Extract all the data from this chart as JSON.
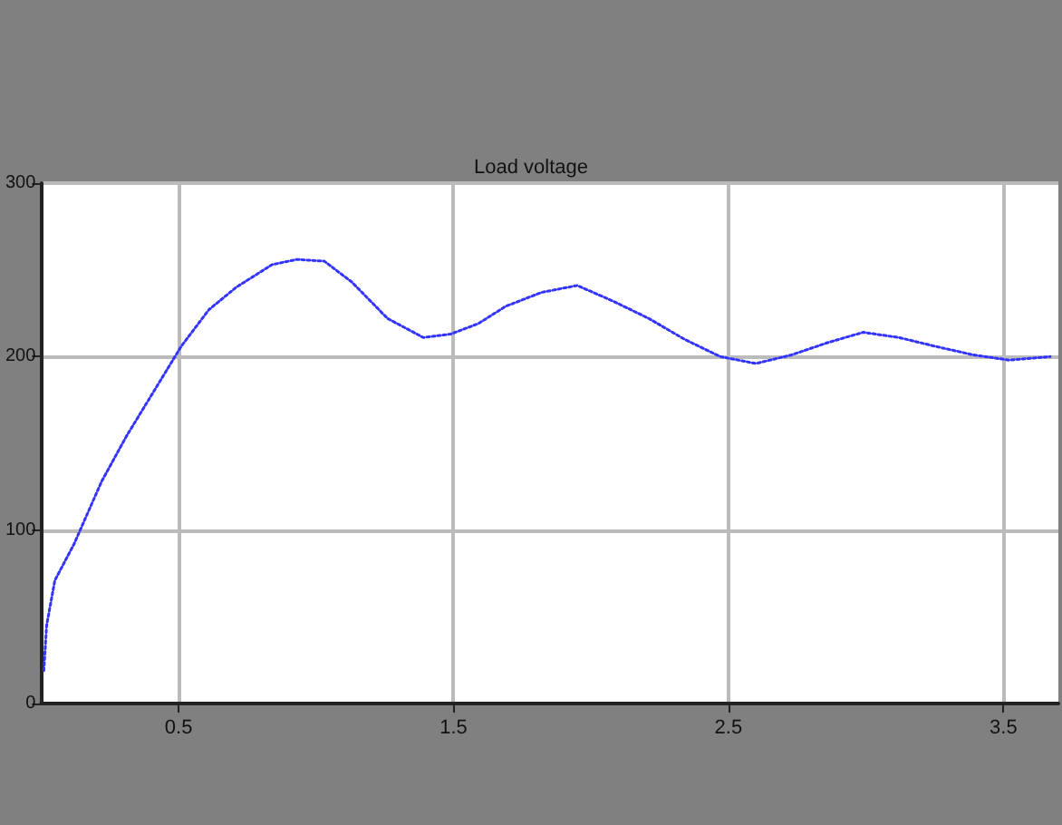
{
  "chart_data": {
    "type": "line",
    "title": "Load voltage",
    "x": [
      0.01,
      0.02,
      0.05,
      0.12,
      0.22,
      0.31,
      0.41,
      0.51,
      0.61,
      0.71,
      0.84,
      0.93,
      1.03,
      1.13,
      1.26,
      1.39,
      1.49,
      1.59,
      1.69,
      1.82,
      1.95,
      2.08,
      2.21,
      2.34,
      2.47,
      2.6,
      2.73,
      2.86,
      2.99,
      3.12,
      3.25,
      3.39,
      3.52,
      3.67
    ],
    "series": [
      {
        "color": "#3333ff",
        "values": [
          19,
          45,
          71,
          92,
          128,
          154,
          180,
          206,
          227,
          240,
          253,
          256,
          255,
          243,
          222,
          211,
          213,
          219,
          229,
          237,
          241,
          232,
          222,
          210,
          200,
          196,
          201,
          208,
          214,
          211,
          206,
          201,
          198,
          200
        ]
      }
    ],
    "xlim": [
      0,
      3.7
    ],
    "xticks": [
      0.5,
      1.5,
      2.5,
      3.5
    ],
    "ylim": [
      0,
      300
    ],
    "yticks": [
      0,
      100,
      200,
      300
    ],
    "grid": true,
    "line_style": "dotted"
  }
}
